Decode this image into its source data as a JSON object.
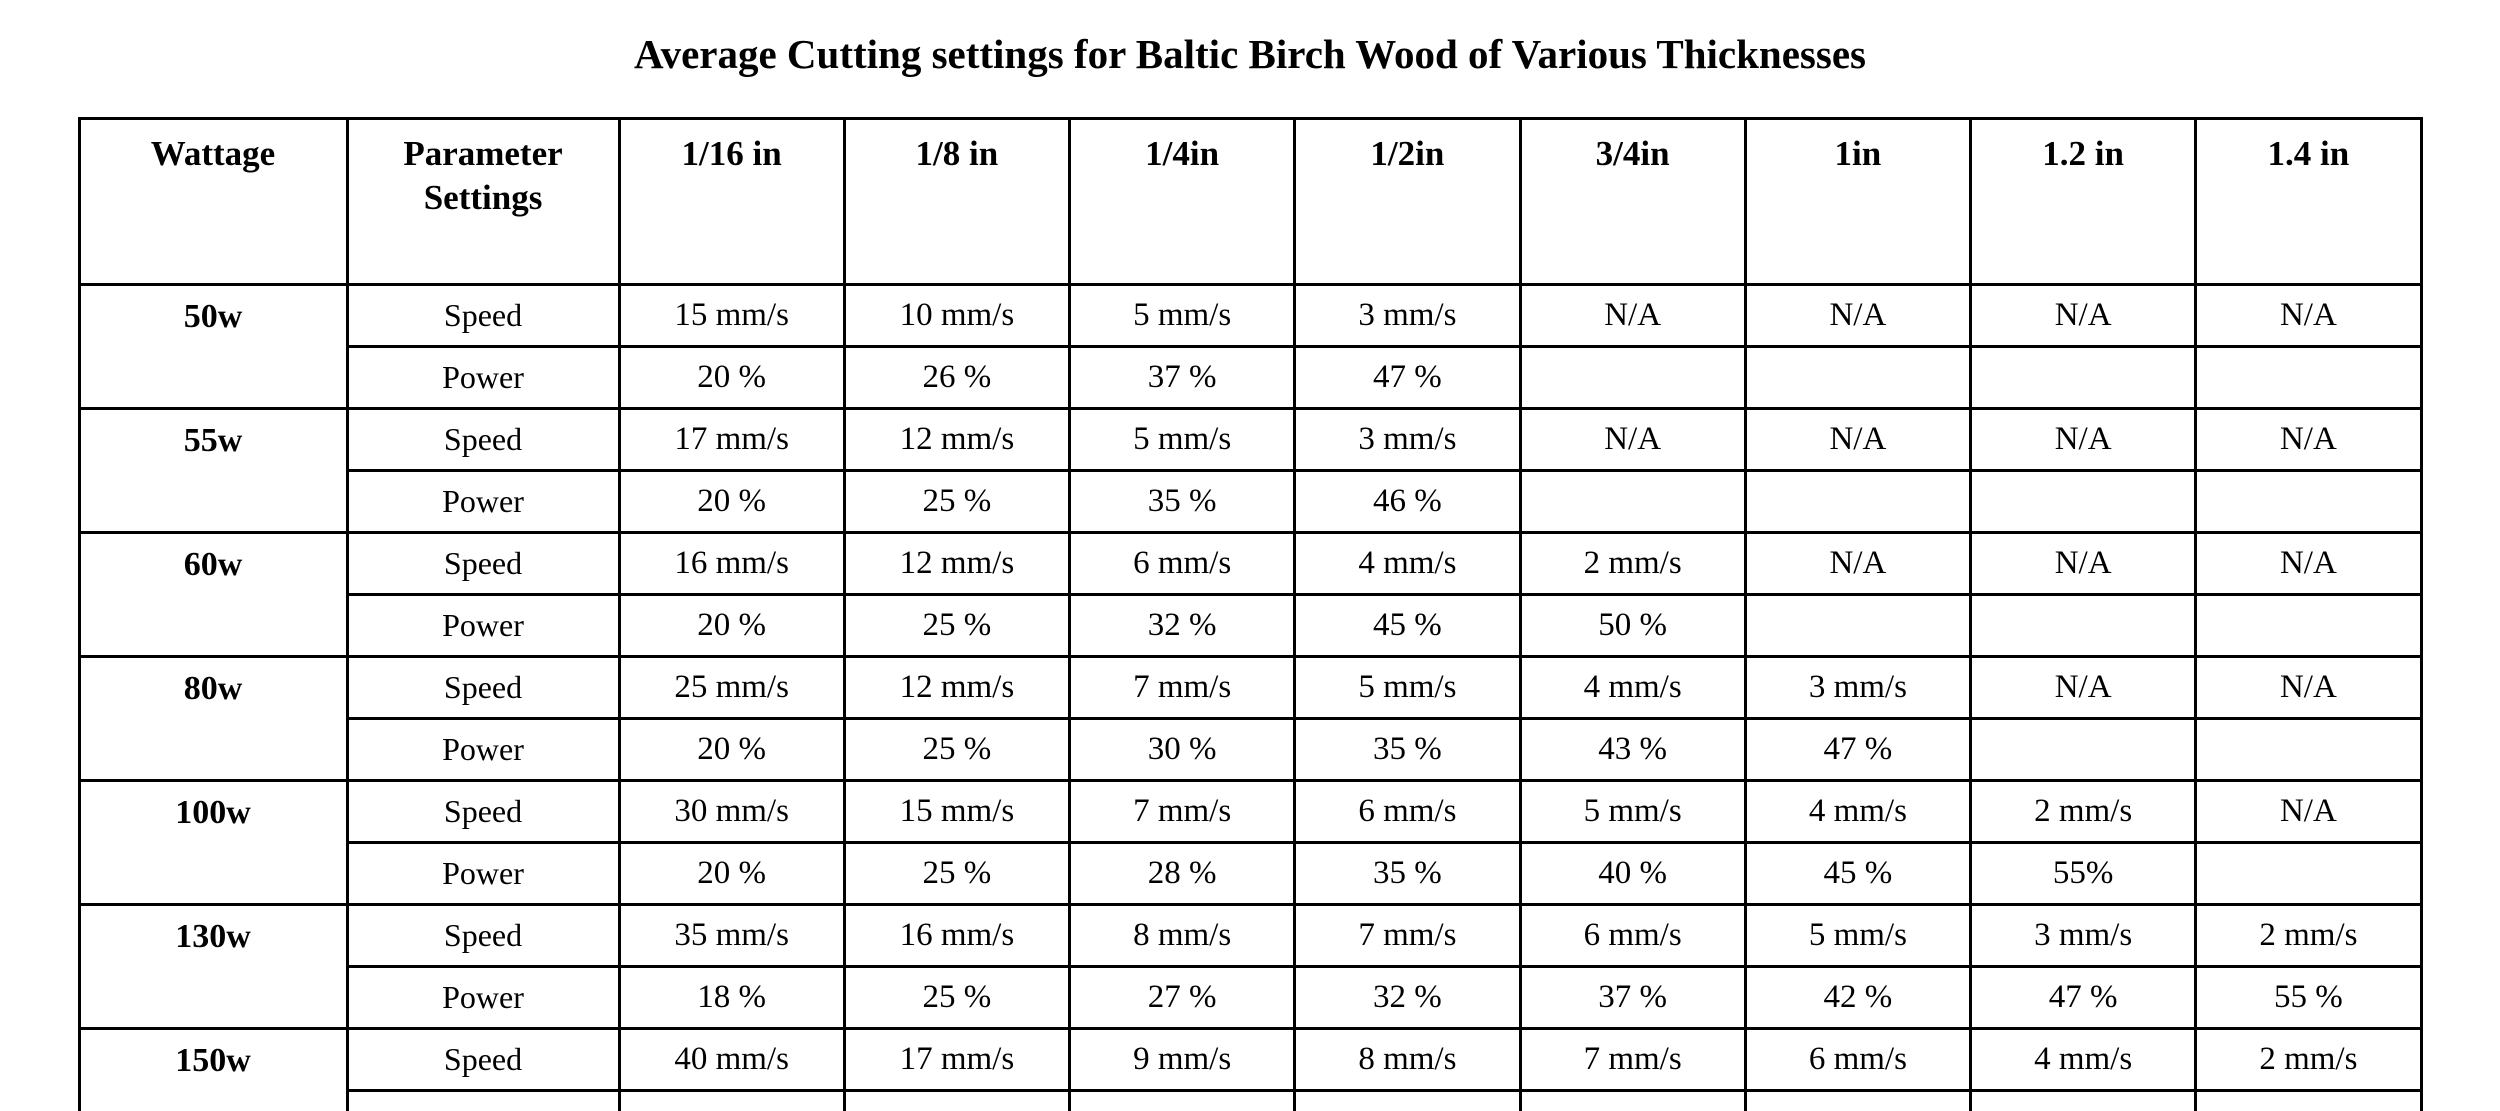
{
  "title": "Average Cutting settings for Baltic Birch Wood of Various Thicknesses",
  "table": {
    "headers": [
      "Wattage",
      "Parameter Settings",
      "1/16 in",
      "1/8 in",
      "1/4in",
      "1/2in",
      "3/4in",
      "1in",
      "1.2 in",
      "1.4 in"
    ],
    "row_labels": {
      "speed": "Speed",
      "power": "Power"
    },
    "groups": [
      {
        "wattage": "50w",
        "speed": [
          "15 mm/s",
          "10 mm/s",
          "5 mm/s",
          "3 mm/s",
          "N/A",
          "N/A",
          "N/A",
          "N/A"
        ],
        "power": [
          "20 %",
          "26 %",
          "37 %",
          "47 %",
          "",
          "",
          "",
          ""
        ]
      },
      {
        "wattage": "55w",
        "speed": [
          "17 mm/s",
          "12 mm/s",
          "5 mm/s",
          "3 mm/s",
          "N/A",
          "N/A",
          "N/A",
          "N/A"
        ],
        "power": [
          "20 %",
          "25 %",
          "35 %",
          "46 %",
          "",
          "",
          "",
          ""
        ]
      },
      {
        "wattage": "60w",
        "speed": [
          "16 mm/s",
          "12 mm/s",
          "6 mm/s",
          "4 mm/s",
          "2 mm/s",
          "N/A",
          "N/A",
          "N/A"
        ],
        "power": [
          "20 %",
          "25 %",
          "32 %",
          "45 %",
          "50 %",
          "",
          "",
          ""
        ]
      },
      {
        "wattage": "80w",
        "speed": [
          "25 mm/s",
          "12 mm/s",
          "7 mm/s",
          "5 mm/s",
          "4 mm/s",
          "3 mm/s",
          "N/A",
          "N/A"
        ],
        "power": [
          "20 %",
          "25 %",
          "30 %",
          "35 %",
          "43 %",
          "47 %",
          "",
          ""
        ]
      },
      {
        "wattage": "100w",
        "speed": [
          "30 mm/s",
          "15 mm/s",
          "7 mm/s",
          "6 mm/s",
          "5 mm/s",
          "4 mm/s",
          "2 mm/s",
          "N/A"
        ],
        "power": [
          "20 %",
          "25 %",
          "28 %",
          "35 %",
          "40 %",
          "45 %",
          "55%",
          ""
        ]
      },
      {
        "wattage": "130w",
        "speed": [
          "35 mm/s",
          "16 mm/s",
          "8 mm/s",
          "7 mm/s",
          "6 mm/s",
          "5 mm/s",
          "3 mm/s",
          "2 mm/s"
        ],
        "power": [
          "18 %",
          "25 %",
          "27 %",
          "32 %",
          "37 %",
          "42 %",
          "47 %",
          "55 %"
        ]
      },
      {
        "wattage": "150w",
        "speed": [
          "40 mm/s",
          "17 mm/s",
          "9 mm/s",
          "8 mm/s",
          "7 mm/s",
          "6 mm/s",
          "4 mm/s",
          "2 mm/s"
        ],
        "power": [
          "",
          "",
          "",
          "",
          "",
          "",
          "",
          ""
        ]
      }
    ]
  }
}
